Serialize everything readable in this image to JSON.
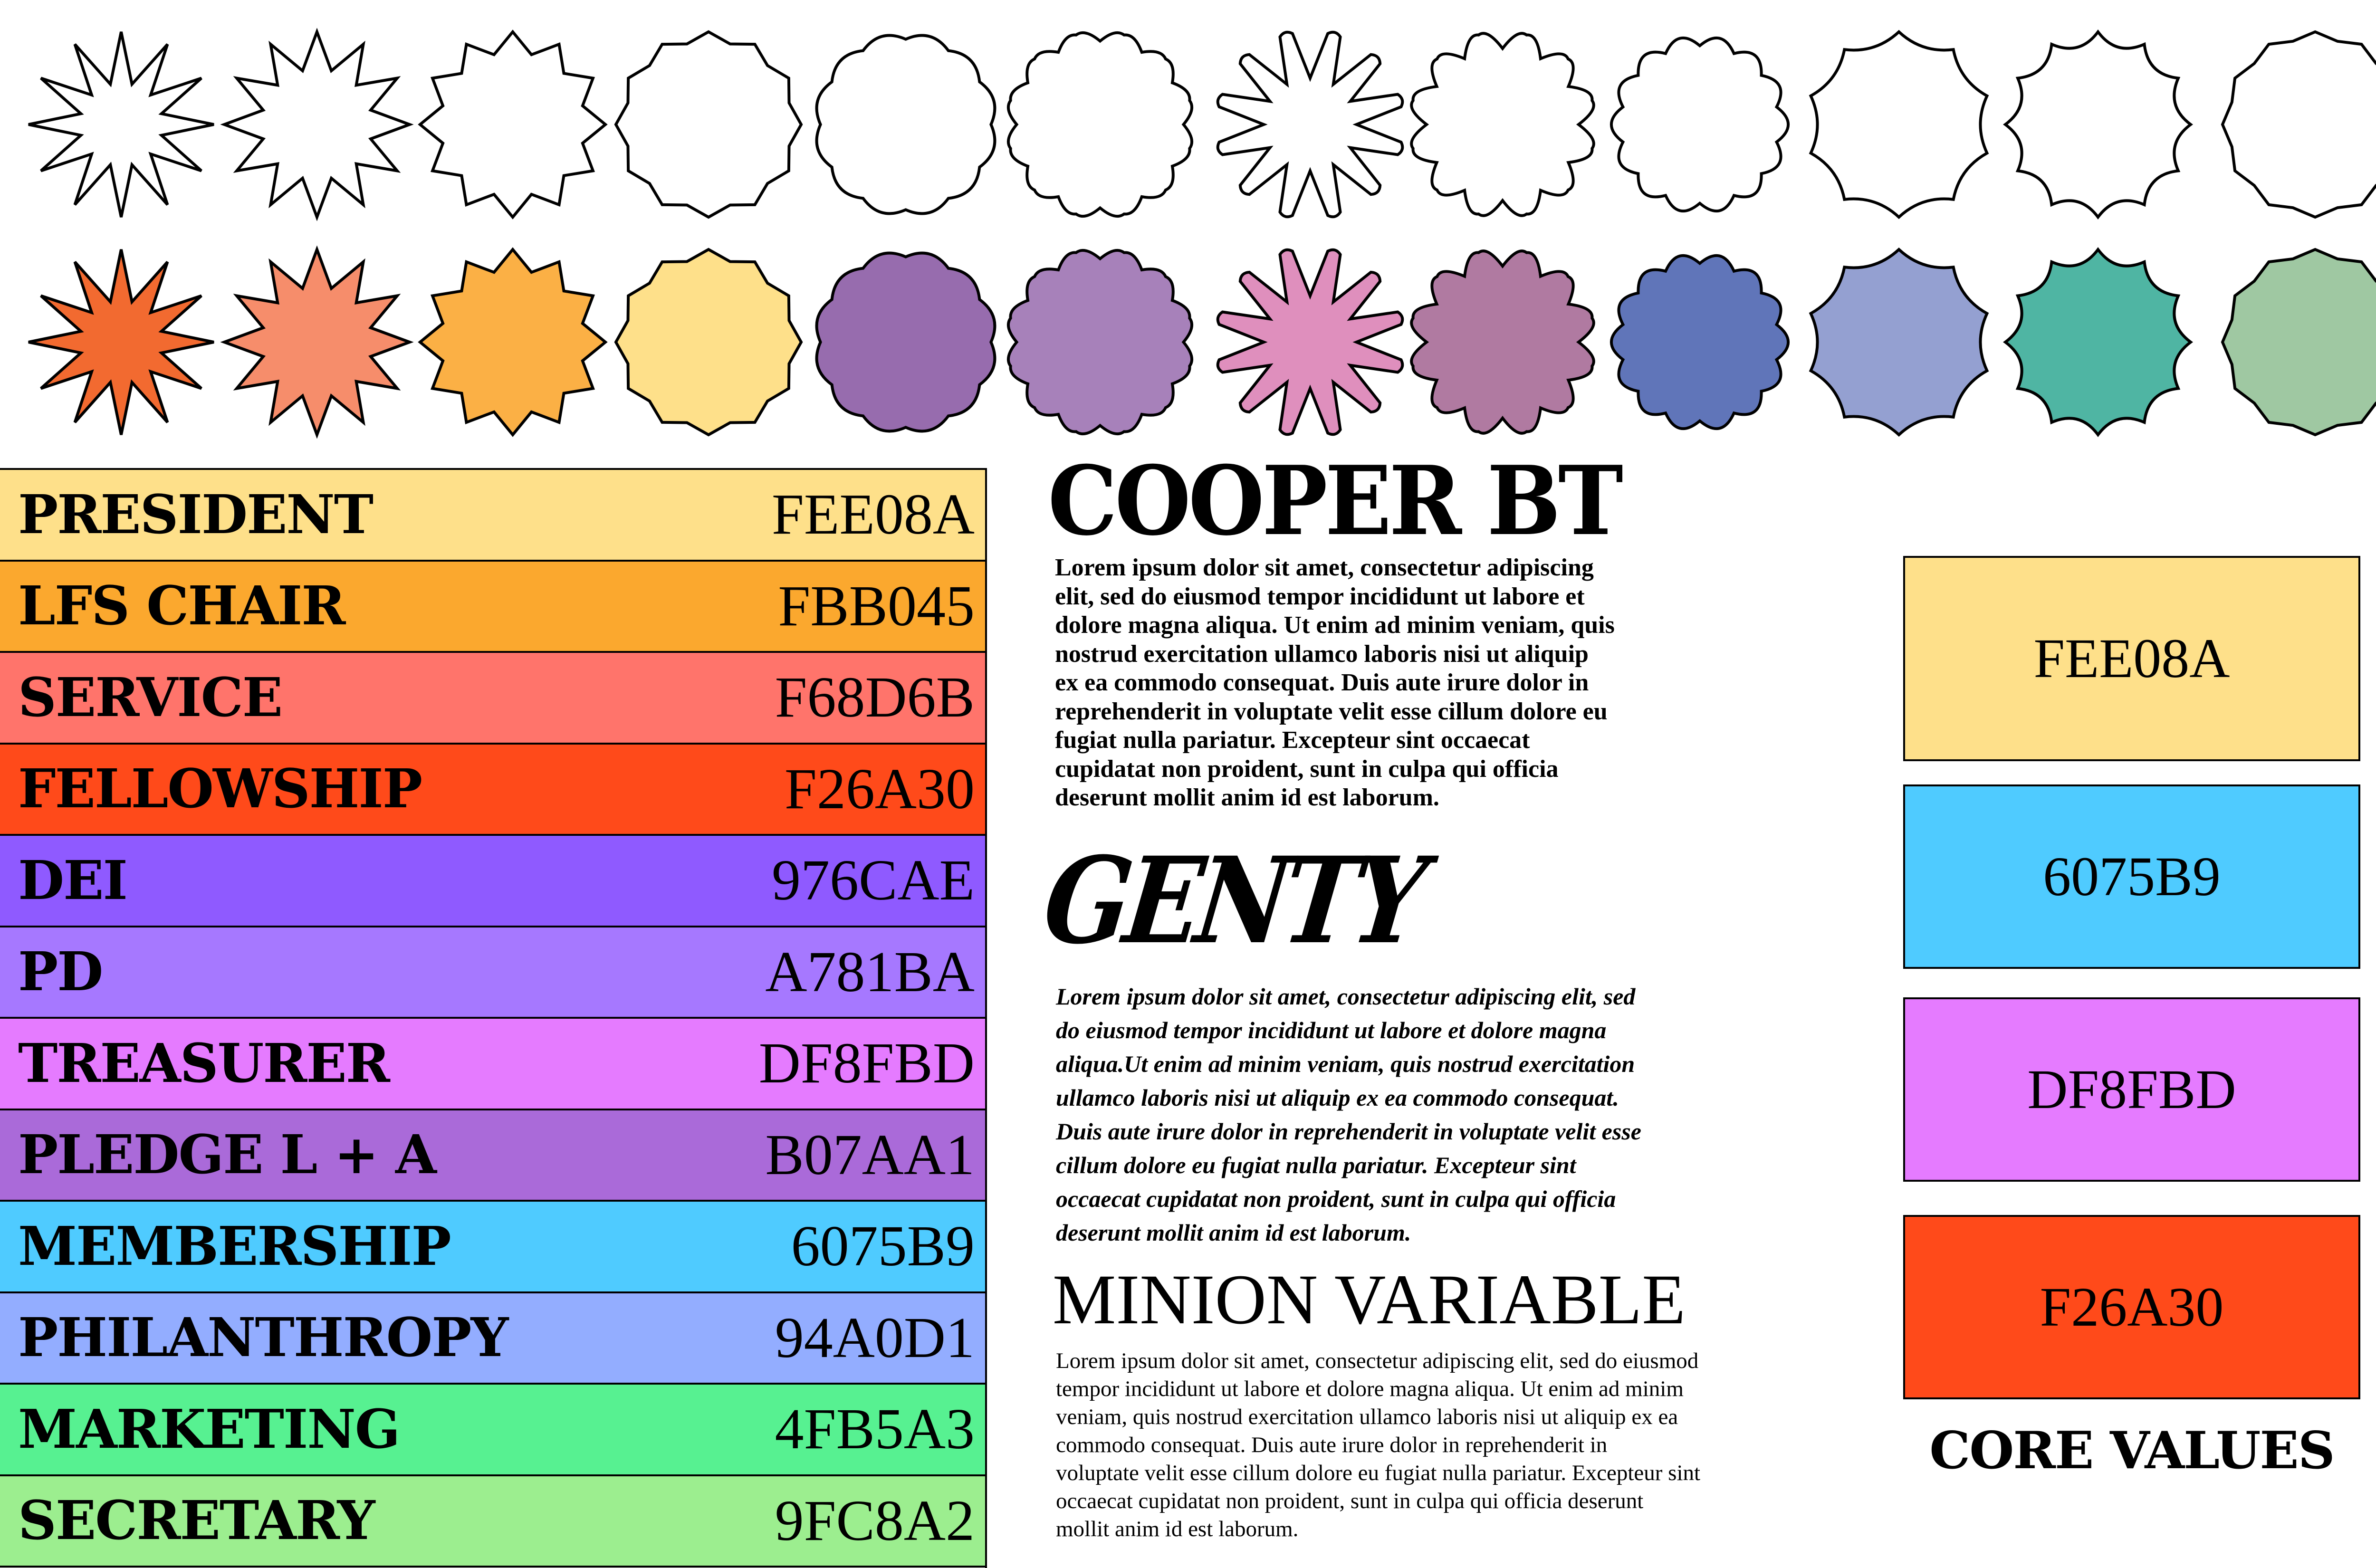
{
  "shapes": [
    {
      "kind": "burst-12-sharp",
      "fill": "#F26A30"
    },
    {
      "kind": "burst-12",
      "fill": "#F68D6B"
    },
    {
      "kind": "burst-12-shallow",
      "fill": "#FBB045"
    },
    {
      "kind": "badge-12-points",
      "fill": "#FEE08A"
    },
    {
      "kind": "scallop-12",
      "fill": "#976CAE"
    },
    {
      "kind": "wavy-12",
      "fill": "#A781BA"
    },
    {
      "kind": "flower-12-petals",
      "fill": "#DF8FBD"
    },
    {
      "kind": "wavy-burst-12",
      "fill": "#B07AA1"
    },
    {
      "kind": "cloud-14",
      "fill": "#6075B9"
    },
    {
      "kind": "concave-scallop-10",
      "fill": "#94A0D1"
    },
    {
      "kind": "concave-spike-12",
      "fill": "#4FB5A3"
    },
    {
      "kind": "dodecagon-badge",
      "fill": "#9FC8A2"
    }
  ],
  "roles": [
    {
      "label": "PRESIDENT",
      "hex": "FEE08A",
      "color": "#FEE08A"
    },
    {
      "label": "LFS CHAIR",
      "hex": "FBB045",
      "color": "#FBA82E"
    },
    {
      "label": "SERVICE",
      "hex": "F68D6B",
      "color": "#FF746B"
    },
    {
      "label": "FELLOWSHIP",
      "hex": "F26A30",
      "color": "#FF4A1A"
    },
    {
      "label": "DEI",
      "hex": "976CAE",
      "color": "#8F5AFF"
    },
    {
      "label": "PD",
      "hex": "A781BA",
      "color": "#A678FF"
    },
    {
      "label": "TREASURER",
      "hex": "DF8FBD",
      "color": "#E57BFF"
    },
    {
      "label": "PLEDGE L + A",
      "hex": "B07AA1",
      "color": "#AA6AD9"
    },
    {
      "label": "MEMBERSHIP",
      "hex": "6075B9",
      "color": "#4FCBFF"
    },
    {
      "label": "PHILANTHROPY",
      "hex": "94A0D1",
      "color": "#93ADFF"
    },
    {
      "label": "MARKETING",
      "hex": "4FB5A3",
      "color": "#57F191"
    },
    {
      "label": "SECRETARY",
      "hex": "9FC8A2",
      "color": "#9CEE8F"
    }
  ],
  "fonts": {
    "cooper": {
      "title": "COOPER BT",
      "lines": [
        "Lorem ipsum dolor sit amet, consectetur adipiscing",
        "elit, sed do eiusmod tempor incididunt ut labore et",
        "dolore magna aliqua. Ut enim ad minim veniam, quis",
        "nostrud exercitation ullamco laboris nisi ut aliquip",
        "ex ea commodo consequat. Duis aute irure dolor in",
        "reprehenderit in voluptate velit esse cillum dolore eu",
        "fugiat nulla pariatur. Excepteur sint occaecat",
        "cupidatat non proident, sunt in culpa qui officia",
        "deserunt mollit anim id est laborum."
      ]
    },
    "genty": {
      "title": "GENTY",
      "lines": [
        "Lorem ipsum dolor sit amet, consectetur adipiscing elit, sed",
        "do eiusmod tempor incididunt ut labore et dolore magna",
        "aliqua.Ut enim ad minim veniam, quis nostrud exercitation",
        "ullamco laboris nisi ut aliquip ex ea commodo consequat.",
        "Duis aute irure dolor in reprehenderit in voluptate velit esse",
        "cillum dolore eu fugiat nulla pariatur. Excepteur sint",
        "occaecat cupidatat non proident, sunt in culpa qui officia",
        "deserunt mollit anim id est laborum."
      ]
    },
    "minion": {
      "title": "MINION VARIABLE",
      "lines": [
        "Lorem ipsum dolor sit amet, consectetur adipiscing elit, sed do eiusmod",
        "tempor incididunt ut labore et dolore magna aliqua. Ut enim ad minim",
        "veniam, quis nostrud exercitation ullamco laboris nisi ut aliquip ex ea",
        "commodo consequat. Duis aute irure dolor in reprehenderit in",
        "voluptate velit esse cillum dolore eu fugiat nulla pariatur. Excepteur sint",
        "occaecat cupidatat non proident, sunt in culpa qui officia deserunt",
        "mollit anim id est laborum."
      ]
    }
  },
  "core_values": {
    "title": "CORE VALUES",
    "swatches": [
      {
        "hex": "FEE08A",
        "color": "#FEE08A"
      },
      {
        "hex": "6075B9",
        "color": "#4FCBFF"
      },
      {
        "hex": "DF8FBD",
        "color": "#E57BFF"
      },
      {
        "hex": "F26A30",
        "color": "#FF4A1A"
      }
    ]
  }
}
